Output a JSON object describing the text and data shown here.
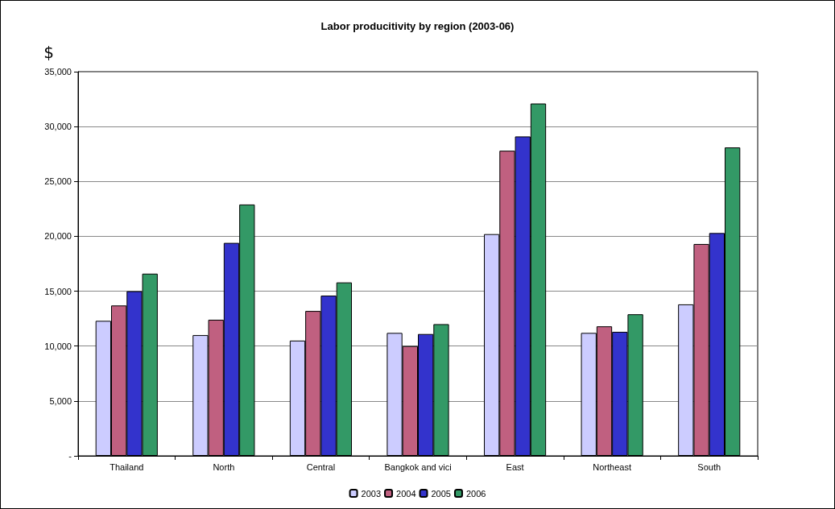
{
  "chart_data": {
    "type": "bar",
    "title": "Labor producitivity by region (2003-06)",
    "ylabel": "$",
    "categories": [
      "Thailand",
      "North",
      "Central",
      "Bangkok and vici",
      "East",
      "Northeast",
      "South"
    ],
    "series": [
      {
        "name": "2003",
        "color": "#ccccff",
        "values": [
          12300,
          11000,
          10500,
          11200,
          20200,
          11200,
          13800
        ]
      },
      {
        "name": "2004",
        "color": "#c06080",
        "values": [
          13700,
          12400,
          13200,
          10000,
          27800,
          11800,
          19300
        ]
      },
      {
        "name": "2005",
        "color": "#3333cc",
        "values": [
          15000,
          19400,
          14600,
          11100,
          29100,
          11300,
          20300
        ]
      },
      {
        "name": "2006",
        "color": "#339966",
        "values": [
          16600,
          22900,
          15800,
          12000,
          32100,
          12900,
          28100
        ]
      }
    ],
    "ylim": [
      0,
      35000
    ],
    "yticks": [
      {
        "value": 0,
        "label": "-"
      },
      {
        "value": 5000,
        "label": "5,000"
      },
      {
        "value": 10000,
        "label": "10,000"
      },
      {
        "value": 15000,
        "label": "15,000"
      },
      {
        "value": 20000,
        "label": "20,000"
      },
      {
        "value": 25000,
        "label": "25,000"
      },
      {
        "value": 30000,
        "label": "30,000"
      },
      {
        "value": 35000,
        "label": "35,000"
      }
    ],
    "grid": "y",
    "legend": "bottom"
  }
}
